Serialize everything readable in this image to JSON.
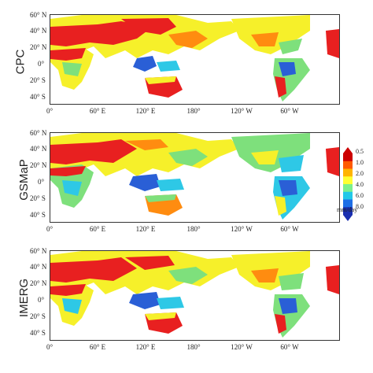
{
  "panels": [
    {
      "label": "CPC"
    },
    {
      "label": "GSMaP"
    },
    {
      "label": "IMERG"
    }
  ],
  "lat_ticks": [
    "60° N",
    "40° N",
    "20° N",
    "0°",
    "20° S",
    "40° S"
  ],
  "lon_ticks": [
    "0°",
    "60° E",
    "120° E",
    "180°",
    "120° W",
    "60° W"
  ],
  "legend": {
    "ticks": [
      "0.5",
      "1.0",
      "2.0",
      "4.0",
      "6.0",
      "8.0"
    ],
    "unit": "mm/day",
    "colors": [
      "#cc0000",
      "#ff5a00",
      "#ffb400",
      "#ffff33",
      "#7cf08c",
      "#21c8e8",
      "#1e6ee6",
      "#1a2fb0"
    ]
  },
  "palette": {
    "frame": "#333333",
    "land_dry": "#e82020",
    "land_orange": "#ff8c10",
    "land_yellow": "#f6f02a",
    "land_green": "#7ee07c",
    "land_cyan": "#2ec8e6",
    "land_blue": "#2a5fd6"
  }
}
